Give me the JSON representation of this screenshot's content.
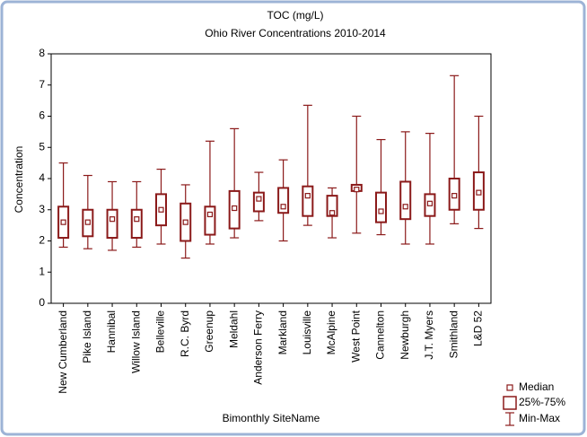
{
  "chart_data": {
    "type": "box",
    "title": "TOC (mg/L)",
    "subtitle": "Ohio River Concentrations 2010-2014",
    "x_label": "Bimonthly SiteName",
    "y_label": "Concentration",
    "categories": [
      "New Cumberland",
      "Pike Island",
      "Hannibal",
      "Willow Island",
      "Belleville",
      "R.C. Byrd",
      "Greenup",
      "Meldahl",
      "Anderson Ferry",
      "Markland",
      "Louisville",
      "McAlpine",
      "West Point",
      "Cannelton",
      "Newburgh",
      "J.T. Myers",
      "Smithland",
      "L&D 52"
    ],
    "min": [
      1.8,
      1.75,
      1.7,
      1.8,
      1.9,
      1.45,
      1.9,
      2.1,
      2.65,
      2.0,
      2.5,
      2.1,
      2.25,
      2.2,
      1.9,
      1.9,
      2.55,
      2.4
    ],
    "q1": [
      2.1,
      2.15,
      2.1,
      2.1,
      2.5,
      2.0,
      2.2,
      2.4,
      2.95,
      2.9,
      2.8,
      2.8,
      3.6,
      2.6,
      2.7,
      2.8,
      3.0,
      3.0
    ],
    "median": [
      2.6,
      2.6,
      2.7,
      2.7,
      3.0,
      2.6,
      2.85,
      3.05,
      3.35,
      3.1,
      3.45,
      2.9,
      3.65,
      2.95,
      3.1,
      3.2,
      3.45,
      3.55
    ],
    "q3": [
      3.1,
      3.0,
      3.0,
      3.0,
      3.5,
      3.2,
      3.1,
      3.6,
      3.55,
      3.7,
      3.75,
      3.45,
      3.8,
      3.55,
      3.9,
      3.5,
      4.0,
      4.2
    ],
    "max": [
      4.5,
      4.1,
      3.9,
      3.9,
      4.3,
      3.8,
      5.2,
      5.6,
      4.2,
      4.6,
      6.35,
      3.7,
      6.0,
      5.25,
      5.5,
      5.45,
      7.3,
      6.0
    ],
    "color": "#8b1a1a",
    "ylim": [
      0,
      8
    ],
    "yticks": [
      0,
      1,
      2,
      3,
      4,
      5,
      6,
      7,
      8
    ],
    "legend": {
      "median": "Median",
      "box": "25%-75%",
      "whisker": "Min-Max"
    },
    "legend_position": "bottom-right"
  }
}
